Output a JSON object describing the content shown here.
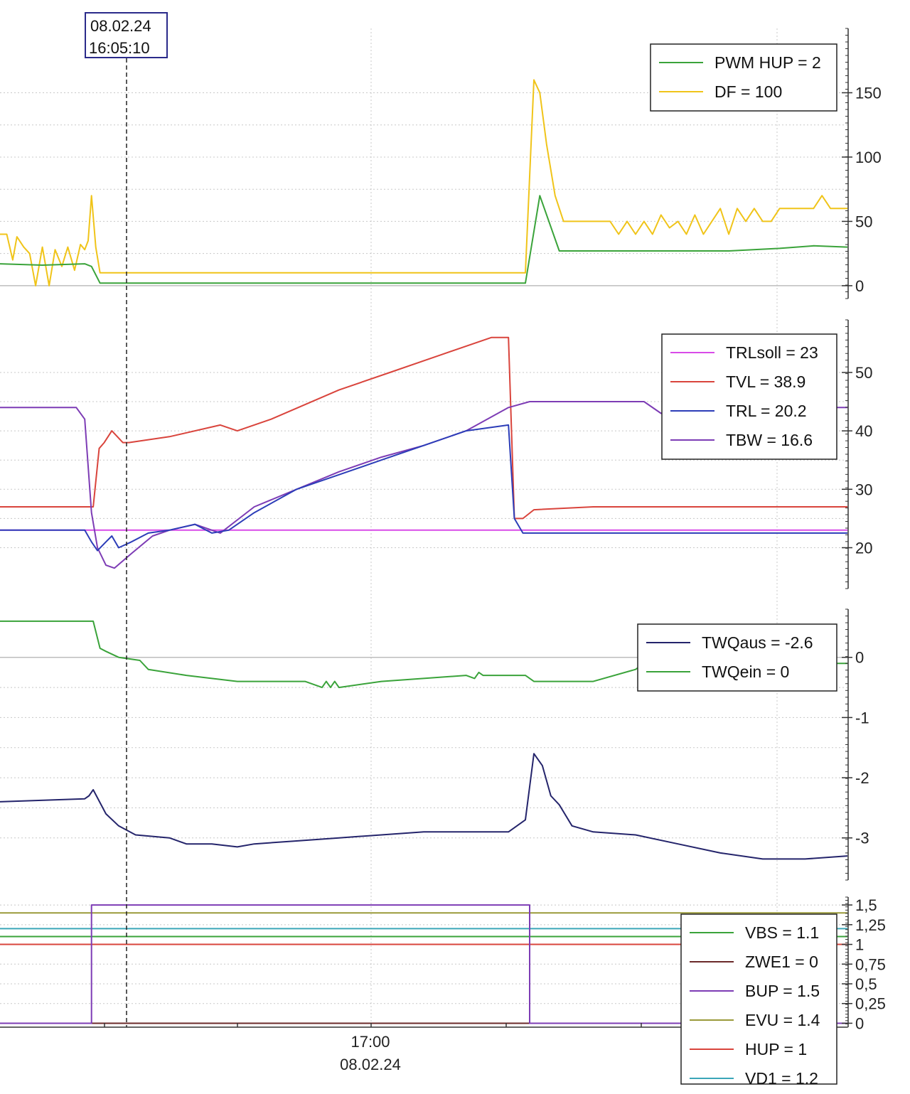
{
  "chart_data": {
    "type": "line",
    "cursor": {
      "date": "08.02.24",
      "time": "16:05:10"
    },
    "x_axis": {
      "tick_time": "17:00",
      "tick_date": "08.02.24"
    },
    "colors": {
      "green": "#3aa33a",
      "yellow": "#f0c419",
      "magenta": "#d84be8",
      "red": "#d9443c",
      "blue": "#2c3db8",
      "purple": "#7d3cb5",
      "navy": "#24246b",
      "olive": "#9a9a3a",
      "teal": "#3ba6b8",
      "darkred": "#6b2a2a"
    },
    "panels": [
      {
        "id": "p1",
        "ylim": [
          -10,
          200
        ],
        "ticks": [
          {
            "v": 0,
            "label": "0"
          },
          {
            "v": 50,
            "label": "50"
          },
          {
            "v": 100,
            "label": "100"
          },
          {
            "v": 150,
            "label": "150"
          }
        ],
        "legend": [
          {
            "label": "PWM HUP = 2",
            "color": "#3aa33a"
          },
          {
            "label": "DF = 100",
            "color": "#f0c419"
          }
        ],
        "series": [
          {
            "name": "DF",
            "color": "#f0c419",
            "x": [
              0,
              0.008,
              0.015,
              0.02,
              0.028,
              0.035,
              0.042,
              0.05,
              0.058,
              0.065,
              0.073,
              0.08,
              0.088,
              0.095,
              0.1,
              0.104,
              0.108,
              0.113,
              0.118,
              0.6,
              0.62,
              0.63,
              0.637,
              0.645,
              0.655,
              0.665,
              0.69,
              0.72,
              0.73,
              0.74,
              0.75,
              0.76,
              0.77,
              0.78,
              0.79,
              0.8,
              0.81,
              0.82,
              0.83,
              0.84,
              0.85,
              0.86,
              0.87,
              0.88,
              0.89,
              0.9,
              0.91,
              0.92,
              0.94,
              0.96,
              0.97,
              0.98,
              1.0
            ],
            "y": [
              40,
              40,
              20,
              38,
              30,
              25,
              0,
              30,
              0,
              28,
              15,
              30,
              12,
              32,
              28,
              35,
              70,
              30,
              10,
              10,
              10,
              160,
              150,
              110,
              70,
              50,
              50,
              50,
              40,
              50,
              40,
              50,
              40,
              55,
              45,
              50,
              40,
              55,
              40,
              50,
              60,
              40,
              60,
              50,
              60,
              50,
              50,
              60,
              60,
              60,
              70,
              60,
              60
            ]
          },
          {
            "name": "PWM HUP",
            "color": "#3aa33a",
            "x": [
              0,
              0.05,
              0.1,
              0.108,
              0.118,
              0.6,
              0.62,
              0.637,
              0.66,
              0.7,
              0.86,
              0.92,
              0.96,
              1.0
            ],
            "y": [
              17,
              16,
              17,
              15,
              2,
              2,
              2,
              70,
              27,
              27,
              27,
              29,
              31,
              30
            ]
          }
        ]
      },
      {
        "id": "p2",
        "ylim": [
          13,
          59
        ],
        "ticks": [
          {
            "v": 20,
            "label": "20"
          },
          {
            "v": 30,
            "label": "30"
          },
          {
            "v": 40,
            "label": "40"
          },
          {
            "v": 50,
            "label": "50"
          }
        ],
        "legend": [
          {
            "label": "TRLsoll = 23",
            "color": "#d84be8"
          },
          {
            "label": "TVL = 38.9",
            "color": "#d9443c"
          },
          {
            "label": "TRL = 20.2",
            "color": "#2c3db8"
          },
          {
            "label": "TBW = 16.6",
            "color": "#7d3cb5"
          }
        ],
        "series": [
          {
            "name": "TVL",
            "color": "#d9443c",
            "x": [
              0,
              0.1,
              0.11,
              0.117,
              0.123,
              0.132,
              0.145,
              0.152,
              0.2,
              0.26,
              0.28,
              0.32,
              0.4,
              0.46,
              0.52,
              0.58,
              0.6,
              0.607,
              0.617,
              0.63,
              0.7,
              0.8,
              1.0
            ],
            "y": [
              27,
              27,
              27,
              37,
              38,
              40,
              38,
              38,
              39,
              41,
              40,
              42,
              47,
              50,
              53,
              56,
              56,
              25,
              25,
              26.5,
              27,
              27,
              27
            ]
          },
          {
            "name": "TRLsoll",
            "color": "#d84be8",
            "x": [
              0,
              1.0
            ],
            "y": [
              23,
              23
            ]
          },
          {
            "name": "TBW",
            "color": "#7d3cb5",
            "x": [
              0,
              0.09,
              0.1,
              0.108,
              0.115,
              0.125,
              0.135,
              0.155,
              0.18,
              0.2,
              0.23,
              0.26,
              0.3,
              0.35,
              0.4,
              0.45,
              0.5,
              0.55,
              0.6,
              0.625,
              0.64,
              0.7,
              0.76,
              0.78,
              0.8,
              1.0
            ],
            "y": [
              44,
              44,
              42,
              26,
              20,
              17,
              16.5,
              19,
              22,
              23,
              24,
              22.5,
              27,
              30,
              33,
              35.5,
              37.5,
              40,
              44,
              45,
              45,
              45,
              45,
              43,
              44,
              44
            ]
          },
          {
            "name": "TRL",
            "color": "#2c3db8",
            "x": [
              0,
              0.1,
              0.108,
              0.115,
              0.125,
              0.132,
              0.14,
              0.155,
              0.175,
              0.2,
              0.23,
              0.25,
              0.27,
              0.3,
              0.35,
              0.4,
              0.45,
              0.5,
              0.55,
              0.6,
              0.607,
              0.617,
              0.64,
              0.7,
              0.8,
              1.0
            ],
            "y": [
              23,
              23,
              21,
              19.5,
              21,
              22,
              20,
              21,
              22.5,
              23,
              24,
              22.5,
              23,
              26,
              30,
              32.5,
              35,
              37.5,
              40,
              41,
              25,
              22.5,
              22.5,
              22.5,
              22.5,
              22.5
            ]
          }
        ]
      },
      {
        "id": "p3",
        "ylim": [
          -3.7,
          0.8
        ],
        "ticks": [
          {
            "v": -3,
            "label": "-3"
          },
          {
            "v": -2,
            "label": "-2"
          },
          {
            "v": -1,
            "label": "-1"
          },
          {
            "v": 0,
            "label": "0"
          }
        ],
        "legend": [
          {
            "label": "TWQaus = -2.6",
            "color": "#24246b"
          },
          {
            "label": "TWQein = 0",
            "color": "#3aa33a"
          }
        ],
        "series": [
          {
            "name": "TWQein",
            "color": "#3aa33a",
            "x": [
              0,
              0.1,
              0.11,
              0.118,
              0.125,
              0.14,
              0.165,
              0.175,
              0.22,
              0.28,
              0.36,
              0.38,
              0.385,
              0.39,
              0.395,
              0.4,
              0.45,
              0.55,
              0.56,
              0.565,
              0.57,
              0.62,
              0.63,
              0.7,
              0.75,
              0.76,
              1.0
            ],
            "y": [
              0.6,
              0.6,
              0.6,
              0.15,
              0.1,
              0.0,
              -0.05,
              -0.2,
              -0.3,
              -0.4,
              -0.4,
              -0.5,
              -0.4,
              -0.5,
              -0.4,
              -0.5,
              -0.4,
              -0.3,
              -0.35,
              -0.25,
              -0.3,
              -0.3,
              -0.4,
              -0.4,
              -0.2,
              -0.1,
              -0.1
            ]
          },
          {
            "name": "TWQaus",
            "color": "#24246b",
            "x": [
              0,
              0.1,
              0.105,
              0.11,
              0.125,
              0.14,
              0.16,
              0.2,
              0.22,
              0.25,
              0.28,
              0.3,
              0.35,
              0.4,
              0.45,
              0.5,
              0.55,
              0.6,
              0.62,
              0.63,
              0.64,
              0.65,
              0.66,
              0.675,
              0.7,
              0.75,
              0.8,
              0.85,
              0.9,
              0.95,
              1.0
            ],
            "y": [
              -2.4,
              -2.35,
              -2.3,
              -2.2,
              -2.6,
              -2.8,
              -2.95,
              -3.0,
              -3.1,
              -3.1,
              -3.15,
              -3.1,
              -3.05,
              -3.0,
              -2.95,
              -2.9,
              -2.9,
              -2.9,
              -2.7,
              -1.6,
              -1.8,
              -2.3,
              -2.45,
              -2.8,
              -2.9,
              -2.95,
              -3.1,
              -3.25,
              -3.35,
              -3.35,
              -3.3
            ]
          }
        ]
      },
      {
        "id": "p4",
        "ylim": [
          -0.05,
          1.6
        ],
        "ticks": [
          {
            "v": 0,
            "label": "0"
          },
          {
            "v": 0.25,
            "label": "0,25"
          },
          {
            "v": 0.5,
            "label": "0,5"
          },
          {
            "v": 0.75,
            "label": "0,75"
          },
          {
            "v": 1,
            "label": "1"
          },
          {
            "v": 1.25,
            "label": "1,25"
          },
          {
            "v": 1.5,
            "label": "1,5"
          }
        ],
        "legend": [
          {
            "label": "VBS = 1.1",
            "color": "#3aa33a"
          },
          {
            "label": "ZWE1 = 0",
            "color": "#6b2a2a"
          },
          {
            "label": "BUP = 1.5",
            "color": "#7d3cb5"
          },
          {
            "label": "EVU = 1.4",
            "color": "#9a9a3a"
          },
          {
            "label": "HUP = 1",
            "color": "#d9443c"
          },
          {
            "label": "VD1 = 1.2",
            "color": "#3ba6b8"
          }
        ],
        "series": [
          {
            "name": "EVU",
            "color": "#9a9a3a",
            "x": [
              0,
              1.0
            ],
            "y": [
              1.4,
              1.4
            ]
          },
          {
            "name": "VD1",
            "color": "#3ba6b8",
            "x": [
              0,
              1.0
            ],
            "y": [
              1.2,
              1.2
            ]
          },
          {
            "name": "VBS",
            "color": "#3aa33a",
            "x": [
              0,
              1.0
            ],
            "y": [
              1.1,
              1.1
            ]
          },
          {
            "name": "HUP",
            "color": "#d9443c",
            "x": [
              0,
              1.0
            ],
            "y": [
              1.0,
              1.0
            ]
          },
          {
            "name": "ZWE1",
            "color": "#6b2a2a",
            "x": [
              0,
              1.0
            ],
            "y": [
              0,
              0
            ]
          },
          {
            "name": "BUP",
            "color": "#7d3cb5",
            "x": [
              0,
              0.108,
              0.108,
              0.625,
              0.625,
              1.0
            ],
            "y": [
              0,
              0,
              1.5,
              1.5,
              0,
              0
            ]
          }
        ]
      }
    ]
  }
}
